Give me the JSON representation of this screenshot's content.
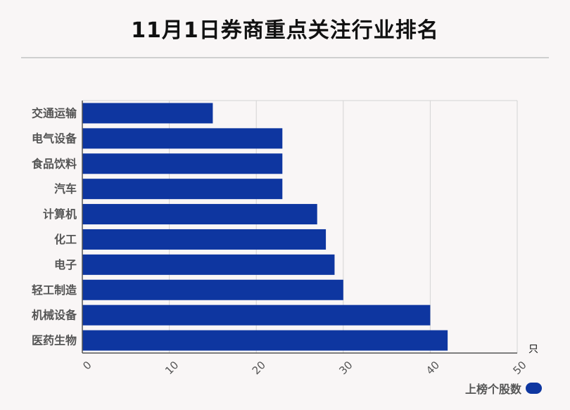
{
  "title": "11月1日券商重点关注行业排名",
  "chart_data": {
    "type": "bar",
    "orientation": "horizontal",
    "categories": [
      "交通运输",
      "电气设备",
      "食品饮料",
      "汽车",
      "计算机",
      "化工",
      "电子",
      "轻工制造",
      "机械设备",
      "医药生物"
    ],
    "series": [
      {
        "name": "上榜个股数",
        "values": [
          15,
          23,
          23,
          23,
          27,
          28,
          29,
          30,
          40,
          42
        ]
      }
    ],
    "xlim": [
      0,
      50
    ],
    "x_ticks": [
      "0",
      "10",
      "20",
      "30",
      "40",
      "50"
    ],
    "x_unit": "只",
    "grid": true,
    "legend_position": "bottom-right",
    "bar_color": "#0e36a0"
  }
}
